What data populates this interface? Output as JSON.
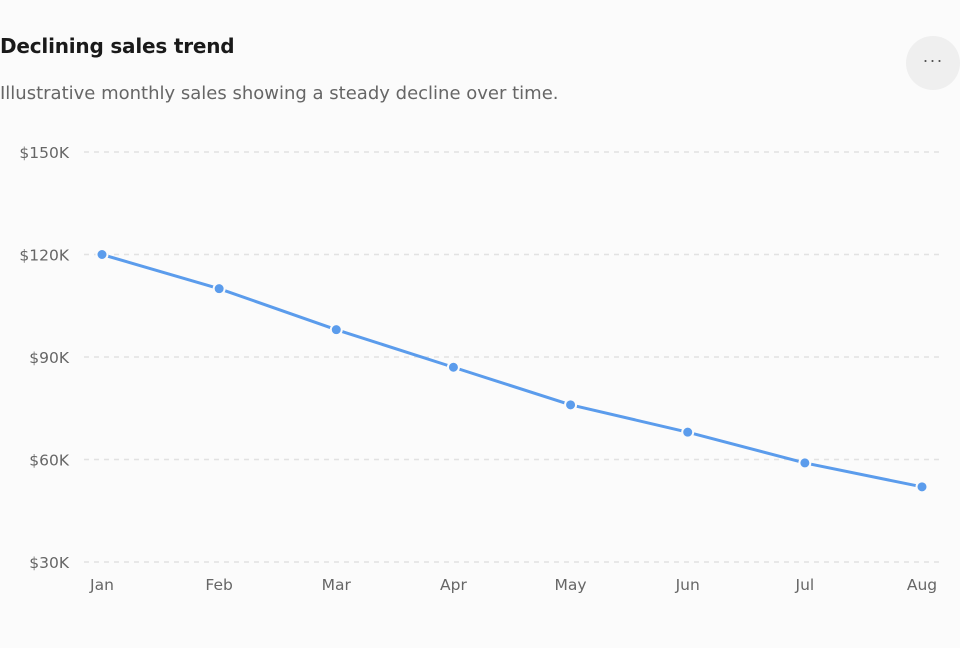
{
  "header": {
    "title": "Declining sales trend",
    "subtitle": "Illustrative monthly sales showing a steady decline over time.",
    "more_label": "···",
    "more_icon": "more-horizontal-icon"
  },
  "colors": {
    "line": "#5b9cec",
    "grid": "#e2e2e2",
    "text": "#666666"
  },
  "chart_data": {
    "type": "line",
    "categories": [
      "Jan",
      "Feb",
      "Mar",
      "Apr",
      "May",
      "Jun",
      "Jul",
      "Aug"
    ],
    "series": [
      {
        "values": [
          120000,
          110000,
          98000,
          87000,
          76000,
          68000,
          59000,
          52000
        ]
      }
    ],
    "yticks": [
      150000,
      120000,
      90000,
      60000,
      30000
    ],
    "ytick_labels": [
      "$150K",
      "$120K",
      "$90K",
      "$60K",
      "$30K"
    ],
    "ylim": [
      30000,
      150000
    ],
    "xlabel": "",
    "ylabel": "",
    "grid": true,
    "legend": false
  }
}
